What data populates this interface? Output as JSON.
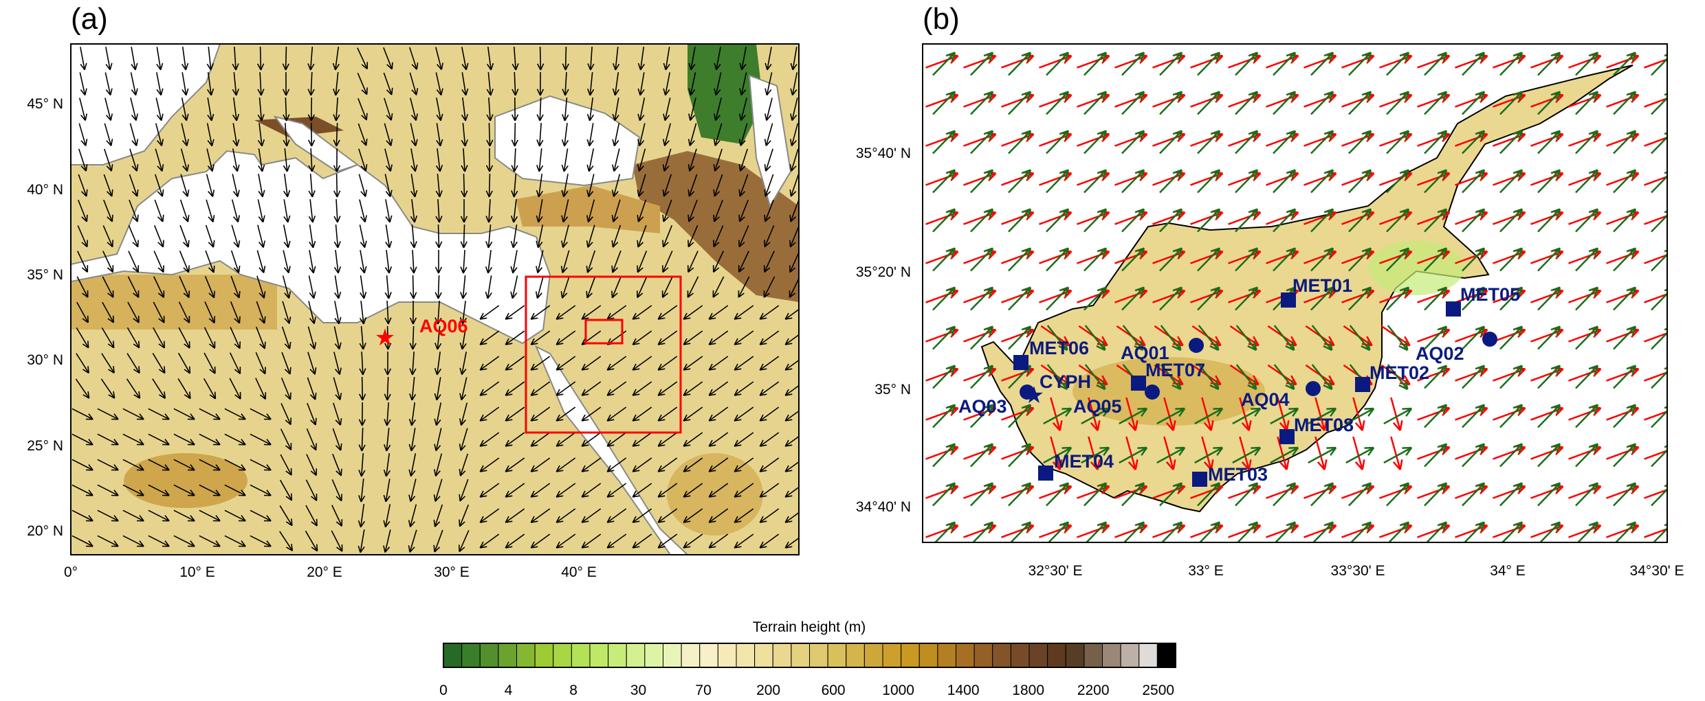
{
  "panel_a": {
    "label": "(a)",
    "lat_ticks": [
      "45° N",
      "40° N",
      "35° N",
      "30° N",
      "25° N",
      "20° N"
    ],
    "lon_ticks": [
      "0°",
      "10° E",
      "20° E",
      "30° E",
      "40° E"
    ],
    "station": "AQ06",
    "colors": {
      "box": "#ff0000",
      "arrow": "#000000"
    }
  },
  "panel_b": {
    "label": "(b)",
    "lat_ticks": [
      "35°40' N",
      "35°20' N",
      "35° N",
      "34°40' N"
    ],
    "lon_ticks": [
      "32°30' E",
      "33° E",
      "33°30' E",
      "34° E",
      "34°30' E"
    ],
    "stations": [
      {
        "name": "MET01",
        "type": "met"
      },
      {
        "name": "MET05",
        "type": "met"
      },
      {
        "name": "AQ02",
        "type": "aq"
      },
      {
        "name": "MET06",
        "type": "met"
      },
      {
        "name": "AQ01",
        "type": "aq"
      },
      {
        "name": "MET07",
        "type": "met"
      },
      {
        "name": "AQ05",
        "type": "aq"
      },
      {
        "name": "CYPH",
        "type": "star"
      },
      {
        "name": "AQ03",
        "type": "aq"
      },
      {
        "name": "AQ04",
        "type": "aq"
      },
      {
        "name": "MET02",
        "type": "met"
      },
      {
        "name": "MET08",
        "type": "met"
      },
      {
        "name": "MET04",
        "type": "met"
      },
      {
        "name": "MET03",
        "type": "met"
      }
    ],
    "colors": {
      "model_arrow": "#ff0000",
      "obs_arrow": "#1a6e1a",
      "station": "#0b1a80"
    }
  },
  "colorbar": {
    "title": "Terrain height  (m)",
    "labels": [
      "0",
      "4",
      "8",
      "30",
      "70",
      "200",
      "600",
      "1000",
      "1400",
      "1800",
      "2200",
      "2500"
    ],
    "colors": [
      "#256b27",
      "#3a7e2a",
      "#52902d",
      "#6aa42e",
      "#84b732",
      "#9ccb34",
      "#a8d746",
      "#b4e256",
      "#bfe866",
      "#c8ec78",
      "#d4f090",
      "#dff3a6",
      "#e9f4b8",
      "#f4f2c4",
      "#f8f0c6",
      "#f6ebb8",
      "#f3e6ab",
      "#efe09e",
      "#ead890",
      "#e5d280",
      "#dfca6f",
      "#d8c05d",
      "#d3b54b",
      "#cea73b",
      "#cd9f2d",
      "#c99924",
      "#c08d21",
      "#b47f22",
      "#a56f26",
      "#936027",
      "#835429",
      "#774b27",
      "#6a4225",
      "#5e3a21",
      "#563d23",
      "#765f4b",
      "#9b8778",
      "#bdb0a8",
      "#dedbd9",
      "#000000"
    ]
  }
}
